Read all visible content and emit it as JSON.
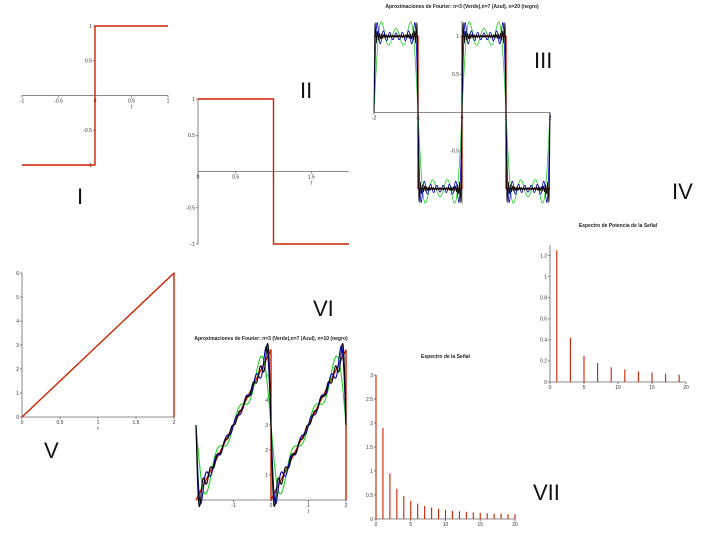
{
  "labels": {
    "I": "I",
    "II": "II",
    "III": "III",
    "IV": "IV",
    "V": "V",
    "VI": "VI",
    "VII": "VII"
  },
  "colors": {
    "red": "#cc2200",
    "green": "#22cc22",
    "blue": "#0000aa",
    "black": "#000000"
  },
  "chart_data": [
    {
      "id": "I",
      "type": "line",
      "title": "",
      "xlabel": "t",
      "xlim": [
        -1,
        1
      ],
      "ylim": [
        -1,
        1
      ],
      "xticks": [
        "-1",
        "-0.5",
        "0",
        "0.5",
        "1"
      ],
      "yticks": [
        "-1",
        "-0.5",
        "0.5",
        "1"
      ],
      "series": [
        {
          "x": [
            -1,
            0,
            0,
            1
          ],
          "y": [
            -1,
            -1,
            1,
            1
          ]
        }
      ]
    },
    {
      "id": "II",
      "type": "line",
      "title": "",
      "xlabel": "t",
      "xlim": [
        0,
        2
      ],
      "ylim": [
        -1,
        1
      ],
      "xticks": [
        "0",
        "0.5",
        "1",
        "1.5"
      ],
      "yticks": [
        "-1",
        "-0.5",
        "0.5",
        "1"
      ],
      "series": [
        {
          "x": [
            0,
            1,
            1,
            2
          ],
          "y": [
            1,
            1,
            -1,
            -1
          ]
        }
      ]
    },
    {
      "id": "III",
      "type": "line",
      "title": "Aproximaciones de Fourier: n=3 (Verde),n=7 (Azul), n=20 (negro)",
      "xlim": [
        -2,
        2
      ],
      "ylim": [
        -1.2,
        1.2
      ],
      "xticks": [
        "-2",
        "-1",
        "0",
        "1",
        "2"
      ],
      "yticks": [
        "-1",
        "-0.5",
        "0.5",
        "1"
      ],
      "series": [
        {
          "kind": "square",
          "x": [
            -2,
            -1,
            -1,
            0,
            0,
            1,
            1,
            2
          ],
          "y": [
            1,
            1,
            -1,
            -1,
            1,
            1,
            -1,
            -1
          ]
        },
        {
          "kind": "square-fourier",
          "n": 3,
          "color": "green"
        },
        {
          "kind": "square-fourier",
          "n": 7,
          "color": "blue"
        },
        {
          "kind": "square-fourier",
          "n": 20,
          "color": "black"
        }
      ]
    },
    {
      "id": "IV",
      "type": "bar",
      "title": "Espectro de Potencia de la Señal",
      "xlim": [
        0,
        20
      ],
      "ylim": [
        0,
        1.3
      ],
      "xticks": [
        "0",
        "5",
        "10",
        "15",
        "20"
      ],
      "yticks": [
        "0",
        "0.2",
        "0.4",
        "0.6",
        "0.8",
        "1",
        "1.2"
      ],
      "x": [
        1,
        3,
        5,
        7,
        9,
        11,
        13,
        15,
        17,
        19
      ],
      "values": [
        1.25,
        0.42,
        0.25,
        0.18,
        0.14,
        0.12,
        0.1,
        0.09,
        0.08,
        0.07
      ]
    },
    {
      "id": "V",
      "type": "line",
      "title": "",
      "xlabel": "t",
      "xlim": [
        0,
        2
      ],
      "ylim": [
        0,
        6
      ],
      "xticks": [
        "0",
        "0.5",
        "1",
        "1.5",
        "2"
      ],
      "yticks": [
        "0",
        "1",
        "2",
        "3",
        "4",
        "5",
        "6"
      ],
      "series": [
        {
          "x": [
            0,
            2,
            2
          ],
          "y": [
            0,
            6,
            0
          ]
        }
      ]
    },
    {
      "id": "VI",
      "type": "line",
      "title": "Aproximaciones de Fourier: n=3 (Verde),n=7 (Azul), n=10 (negro)",
      "xlabel": "t",
      "xlim": [
        -2,
        2
      ],
      "ylim": [
        0,
        6
      ],
      "xticks": [
        "-1",
        "0",
        "1",
        "2"
      ],
      "yticks": [
        "1",
        "2",
        "3",
        "4",
        "5",
        "6"
      ],
      "series": [
        {
          "kind": "saw",
          "x": [
            -2,
            0,
            0,
            2,
            2
          ],
          "y": [
            0,
            6,
            0,
            6,
            0
          ]
        },
        {
          "kind": "saw-fourier",
          "n": 3,
          "color": "green"
        },
        {
          "kind": "saw-fourier",
          "n": 7,
          "color": "blue"
        },
        {
          "kind": "saw-fourier",
          "n": 10,
          "color": "black"
        }
      ]
    },
    {
      "id": "VII",
      "type": "bar",
      "title": "Espectro de la Señal",
      "xlim": [
        0,
        20
      ],
      "ylim": [
        0,
        3
      ],
      "xticks": [
        "0",
        "5",
        "10",
        "15",
        "20"
      ],
      "yticks": [
        "0",
        "0.5",
        "1",
        "1.5",
        "2",
        "2.5",
        "3"
      ],
      "x": [
        0,
        1,
        2,
        3,
        4,
        5,
        6,
        7,
        8,
        9,
        10,
        11,
        12,
        13,
        14,
        15,
        16,
        17,
        18,
        19,
        20
      ],
      "values": [
        3.0,
        1.9,
        0.95,
        0.63,
        0.48,
        0.38,
        0.32,
        0.27,
        0.24,
        0.21,
        0.19,
        0.17,
        0.16,
        0.15,
        0.14,
        0.13,
        0.12,
        0.11,
        0.11,
        0.1,
        0.1
      ]
    }
  ]
}
